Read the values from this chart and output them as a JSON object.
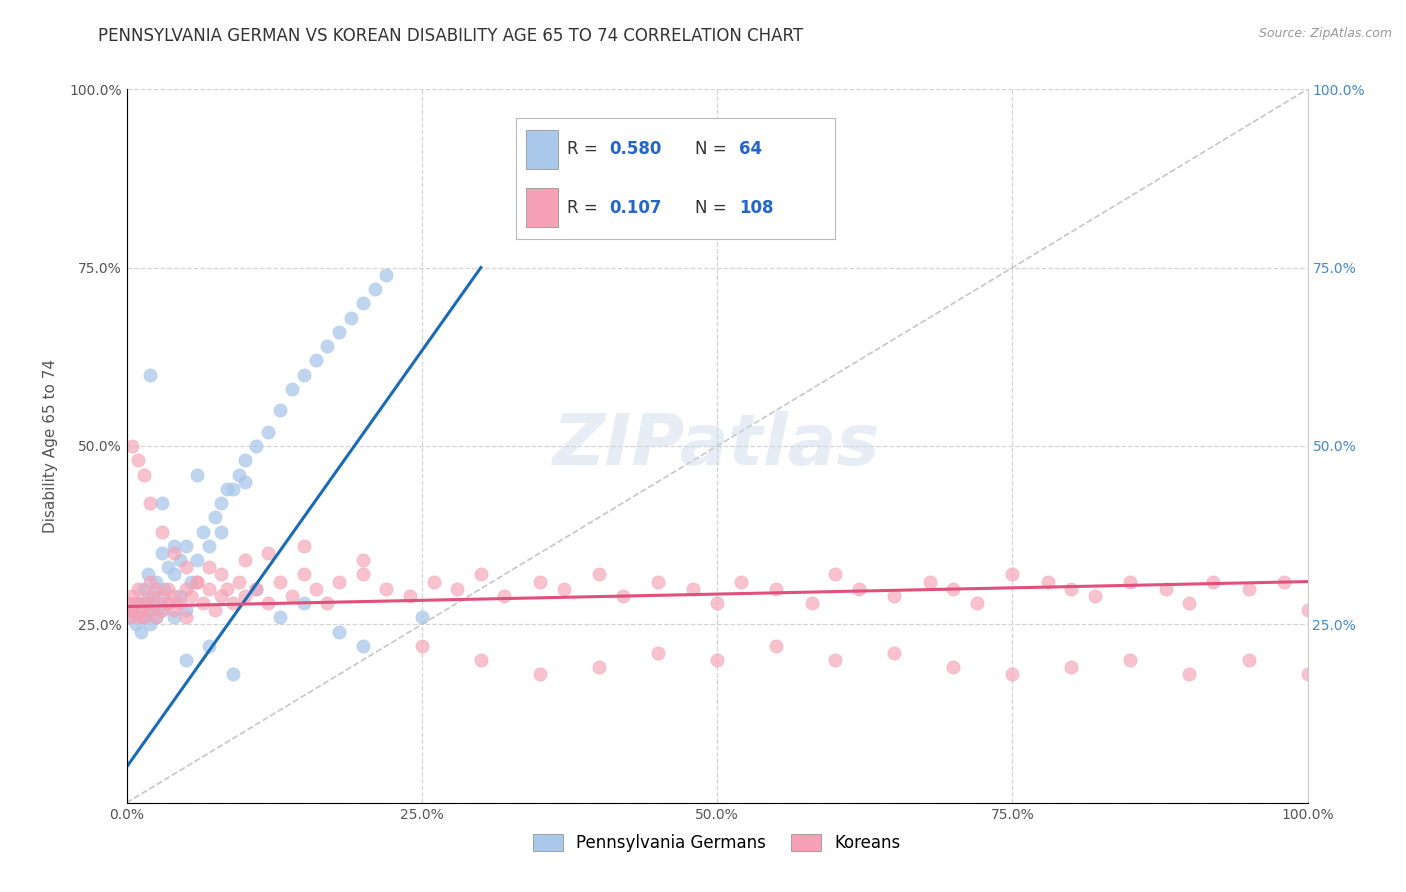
{
  "title": "PENNSYLVANIA GERMAN VS KOREAN DISABILITY AGE 65 TO 74 CORRELATION CHART",
  "source": "Source: ZipAtlas.com",
  "ylabel": "Disability Age 65 to 74",
  "xmin": 0.0,
  "xmax": 100.0,
  "ymin": 0.0,
  "ymax": 100.0,
  "xticks": [
    0,
    25,
    50,
    75,
    100
  ],
  "xtick_labels": [
    "0.0%",
    "25.0%",
    "50.0%",
    "75.0%",
    "100.0%"
  ],
  "yticks": [
    0,
    25,
    50,
    75,
    100
  ],
  "ytick_labels": [
    "",
    "25.0%",
    "50.0%",
    "75.0%",
    "100.0%"
  ],
  "R_german": 0.58,
  "N_german": 64,
  "R_korean": 0.107,
  "N_korean": 108,
  "german_color": "#aac8ea",
  "korean_color": "#f5a0b5",
  "german_line_color": "#1a6bb5",
  "korean_line_color": "#e0507a",
  "diag_line_color": "#b8b8b8",
  "legend_label_german": "Pennsylvania Germans",
  "legend_label_korean": "Koreans",
  "background_color": "#ffffff",
  "grid_color": "#d0d0d0",
  "watermark": "ZIPatlas",
  "title_color": "#333333",
  "axis_label_color": "#555555",
  "tick_label_color": "#555555",
  "right_tick_color": "#4488cc",
  "german_scatter_x": [
    0.3,
    0.5,
    0.8,
    1.0,
    1.2,
    1.5,
    1.5,
    1.8,
    1.8,
    2.0,
    2.0,
    2.2,
    2.5,
    2.5,
    2.8,
    3.0,
    3.0,
    3.2,
    3.5,
    3.5,
    4.0,
    4.0,
    4.5,
    4.5,
    5.0,
    5.0,
    5.5,
    6.0,
    6.5,
    7.0,
    7.5,
    8.0,
    8.5,
    9.0,
    9.5,
    10.0,
    10.0,
    11.0,
    12.0,
    13.0,
    14.0,
    15.0,
    16.0,
    17.0,
    18.0,
    19.0,
    20.0,
    21.0,
    22.0,
    5.0,
    7.0,
    9.0,
    2.0,
    3.0,
    4.0,
    1.0,
    6.0,
    8.0,
    11.0,
    13.0,
    15.0,
    18.0,
    20.0,
    25.0
  ],
  "german_scatter_y": [
    26.0,
    27.0,
    25.0,
    28.0,
    24.0,
    26.0,
    30.0,
    28.0,
    32.0,
    25.0,
    27.0,
    29.0,
    31.0,
    26.0,
    28.0,
    27.0,
    35.0,
    30.0,
    28.0,
    33.0,
    32.0,
    26.0,
    34.0,
    29.0,
    36.0,
    27.0,
    31.0,
    34.0,
    38.0,
    36.0,
    40.0,
    42.0,
    44.0,
    44.0,
    46.0,
    45.0,
    48.0,
    50.0,
    52.0,
    55.0,
    58.0,
    60.0,
    62.0,
    64.0,
    66.0,
    68.0,
    70.0,
    72.0,
    74.0,
    20.0,
    22.0,
    18.0,
    60.0,
    42.0,
    36.0,
    28.0,
    46.0,
    38.0,
    30.0,
    26.0,
    28.0,
    24.0,
    22.0,
    26.0
  ],
  "korean_scatter_x": [
    0.1,
    0.2,
    0.3,
    0.5,
    0.5,
    0.8,
    1.0,
    1.0,
    1.2,
    1.5,
    1.5,
    1.8,
    2.0,
    2.0,
    2.2,
    2.5,
    2.5,
    3.0,
    3.0,
    3.5,
    3.5,
    4.0,
    4.0,
    4.5,
    5.0,
    5.0,
    5.5,
    6.0,
    6.5,
    7.0,
    7.5,
    8.0,
    8.5,
    9.0,
    9.5,
    10.0,
    11.0,
    12.0,
    13.0,
    14.0,
    15.0,
    16.0,
    17.0,
    18.0,
    20.0,
    22.0,
    24.0,
    26.0,
    28.0,
    30.0,
    32.0,
    35.0,
    37.0,
    40.0,
    42.0,
    45.0,
    48.0,
    50.0,
    52.0,
    55.0,
    58.0,
    60.0,
    62.0,
    65.0,
    68.0,
    70.0,
    72.0,
    75.0,
    78.0,
    80.0,
    82.0,
    85.0,
    88.0,
    90.0,
    92.0,
    95.0,
    98.0,
    100.0,
    0.5,
    1.0,
    1.5,
    2.0,
    3.0,
    4.0,
    5.0,
    6.0,
    7.0,
    8.0,
    10.0,
    12.0,
    15.0,
    20.0,
    25.0,
    30.0,
    35.0,
    40.0,
    45.0,
    50.0,
    55.0,
    60.0,
    65.0,
    70.0,
    75.0,
    80.0,
    85.0,
    90.0,
    95.0,
    100.0
  ],
  "korean_scatter_y": [
    27.0,
    28.0,
    26.0,
    29.0,
    27.0,
    28.0,
    30.0,
    26.0,
    27.0,
    28.0,
    26.0,
    29.0,
    27.0,
    31.0,
    28.0,
    30.0,
    26.0,
    29.0,
    27.0,
    28.0,
    30.0,
    27.0,
    29.0,
    28.0,
    30.0,
    26.0,
    29.0,
    31.0,
    28.0,
    30.0,
    27.0,
    29.0,
    30.0,
    28.0,
    31.0,
    29.0,
    30.0,
    28.0,
    31.0,
    29.0,
    32.0,
    30.0,
    28.0,
    31.0,
    32.0,
    30.0,
    29.0,
    31.0,
    30.0,
    32.0,
    29.0,
    31.0,
    30.0,
    32.0,
    29.0,
    31.0,
    30.0,
    28.0,
    31.0,
    30.0,
    28.0,
    32.0,
    30.0,
    29.0,
    31.0,
    30.0,
    28.0,
    32.0,
    31.0,
    30.0,
    29.0,
    31.0,
    30.0,
    28.0,
    31.0,
    30.0,
    31.0,
    27.0,
    50.0,
    48.0,
    46.0,
    42.0,
    38.0,
    35.0,
    33.0,
    31.0,
    33.0,
    32.0,
    34.0,
    35.0,
    36.0,
    34.0,
    22.0,
    20.0,
    18.0,
    19.0,
    21.0,
    20.0,
    22.0,
    20.0,
    21.0,
    19.0,
    18.0,
    19.0,
    20.0,
    18.0,
    20.0,
    18.0
  ],
  "german_line_x": [
    0.0,
    30.0
  ],
  "german_line_y_start": 5.0,
  "german_line_y_end": 75.0,
  "korean_line_x": [
    0.0,
    100.0
  ],
  "korean_line_y_start": 27.5,
  "korean_line_y_end": 31.0,
  "title_fontsize": 12,
  "axis_label_fontsize": 11,
  "tick_label_fontsize": 10,
  "legend_fontsize": 12,
  "watermark_fontsize": 52,
  "watermark_color": "#c8d8ea",
  "watermark_alpha": 0.45
}
